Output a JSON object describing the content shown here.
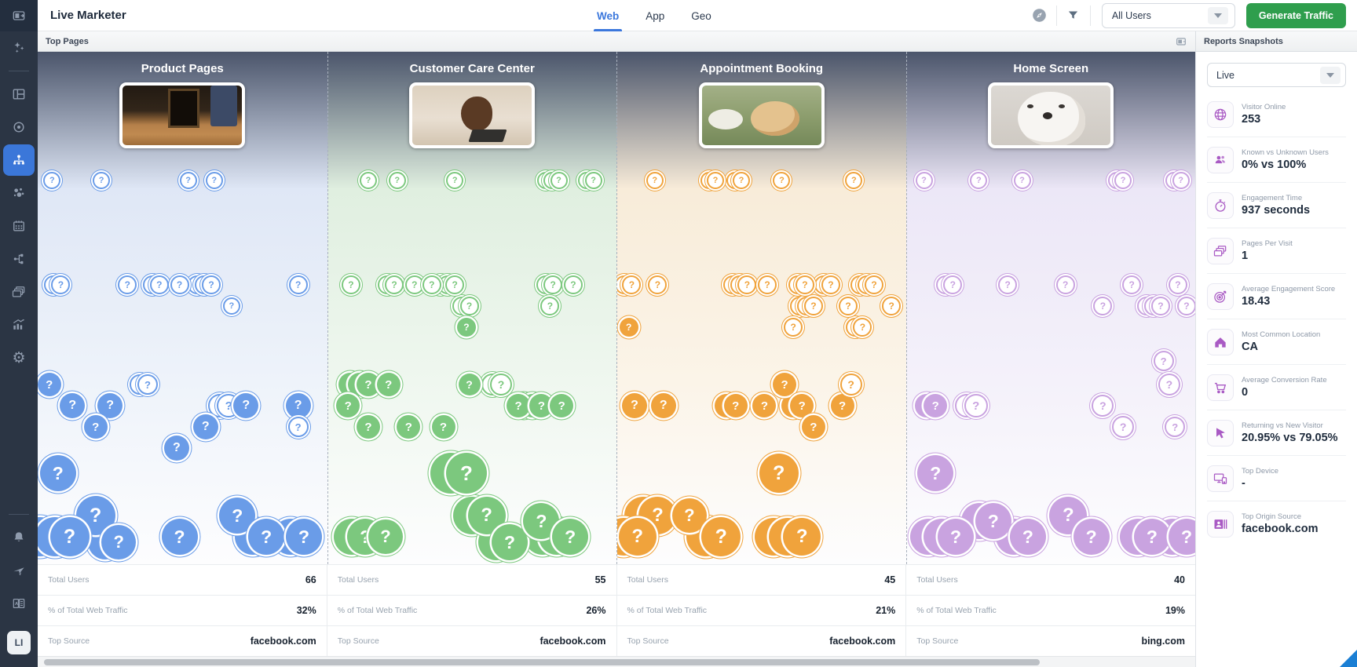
{
  "header": {
    "title": "Live Marketer",
    "tabs": [
      {
        "label": "Web",
        "active": true
      },
      {
        "label": "App",
        "active": false
      },
      {
        "label": "Geo",
        "active": false
      }
    ],
    "icons": [
      "compass-icon",
      "filter-icon"
    ],
    "filter_value": "All Users",
    "generate_label": "Generate Traffic"
  },
  "sidebar": {
    "icons": [
      "panel-toggle-icon",
      "sparkles-icon",
      "dashboard-icon",
      "target-icon",
      "sitemap-icon",
      "bubbles-icon",
      "calendar-icon",
      "flow-icon",
      "layers-icon",
      "chart-growth-icon",
      "gear-icon",
      "bell-icon",
      "send-icon",
      "book-icon"
    ],
    "active_item": "sitemap-icon",
    "avatar": "LI"
  },
  "toolbar": {
    "top_pages": "Top Pages",
    "reports": "Reports Snapshots"
  },
  "stats_labels": {
    "total_users": "Total Users",
    "traffic": "% of Total Web Traffic",
    "source": "Top Source"
  },
  "columns": [
    {
      "title": "Product Pages",
      "color": "#6a9ce8",
      "tint": "#dfe7f6",
      "tint_light": "#eef3fa",
      "total_users": "66",
      "traffic_pct": "32%",
      "top_source": "facebook.com",
      "bubbles": [
        [
          5,
          164,
          22,
          "o",
          1
        ],
        [
          22,
          164,
          22,
          "o",
          1
        ],
        [
          52,
          164,
          22,
          "o",
          1
        ],
        [
          61,
          164,
          22,
          "o",
          1
        ],
        [
          8,
          297,
          24,
          "o",
          2
        ],
        [
          31,
          297,
          24,
          "o",
          1
        ],
        [
          42,
          297,
          24,
          "o",
          2
        ],
        [
          49,
          297,
          24,
          "o",
          1
        ],
        [
          60,
          297,
          24,
          "o",
          3
        ],
        [
          67,
          324,
          22,
          "o",
          1
        ],
        [
          90,
          297,
          24,
          "o",
          1
        ],
        [
          4,
          424,
          30,
          "f",
          1
        ],
        [
          12,
          451,
          32,
          "f",
          1
        ],
        [
          25,
          451,
          32,
          "f",
          1
        ],
        [
          20,
          478,
          30,
          "f",
          1
        ],
        [
          38,
          424,
          26,
          "o",
          2
        ],
        [
          48,
          505,
          32,
          "f",
          1
        ],
        [
          58,
          478,
          32,
          "f",
          1
        ],
        [
          66,
          451,
          30,
          "o",
          2
        ],
        [
          72,
          451,
          32,
          "f",
          1
        ],
        [
          90,
          451,
          32,
          "f",
          1
        ],
        [
          90,
          478,
          26,
          "o",
          1
        ],
        [
          7,
          537,
          46,
          "f",
          1
        ],
        [
          20,
          591,
          50,
          "f",
          1
        ],
        [
          11,
          618,
          50,
          "f",
          3
        ],
        [
          28,
          625,
          44,
          "f",
          2
        ],
        [
          49,
          618,
          46,
          "f",
          1
        ],
        [
          69,
          591,
          46,
          "f",
          1
        ],
        [
          79,
          618,
          46,
          "f",
          2
        ],
        [
          92,
          618,
          46,
          "f",
          2
        ]
      ]
    },
    {
      "title": "Customer Care Center",
      "color": "#7cc87e",
      "tint": "#e0efe0",
      "tint_light": "#eff7ef",
      "total_users": "55",
      "traffic_pct": "26%",
      "top_source": "facebook.com",
      "bubbles": [
        [
          14,
          164,
          22,
          "o",
          1
        ],
        [
          24,
          164,
          22,
          "o",
          1
        ],
        [
          44,
          164,
          22,
          "o",
          1
        ],
        [
          80,
          164,
          22,
          "o",
          3
        ],
        [
          92,
          164,
          22,
          "o",
          2
        ],
        [
          8,
          297,
          24,
          "o",
          1
        ],
        [
          23,
          297,
          24,
          "o",
          2
        ],
        [
          30,
          297,
          24,
          "o",
          1
        ],
        [
          36,
          297,
          24,
          "o",
          1
        ],
        [
          44,
          297,
          24,
          "o",
          3
        ],
        [
          49,
          324,
          24,
          "o",
          2
        ],
        [
          48,
          351,
          24,
          "f",
          1
        ],
        [
          78,
          297,
          24,
          "o",
          2
        ],
        [
          85,
          297,
          24,
          "o",
          1
        ],
        [
          77,
          324,
          24,
          "o",
          1
        ],
        [
          7,
          451,
          30,
          "f",
          1
        ],
        [
          14,
          424,
          30,
          "f",
          3
        ],
        [
          21,
          424,
          30,
          "f",
          1
        ],
        [
          14,
          478,
          30,
          "f",
          1
        ],
        [
          28,
          478,
          30,
          "f",
          1
        ],
        [
          40,
          478,
          30,
          "f",
          1
        ],
        [
          49,
          424,
          28,
          "f",
          1
        ],
        [
          60,
          424,
          28,
          "o",
          2
        ],
        [
          66,
          451,
          30,
          "f",
          1
        ],
        [
          74,
          451,
          30,
          "f",
          3
        ],
        [
          81,
          451,
          30,
          "f",
          1
        ],
        [
          48,
          537,
          52,
          "f",
          2
        ],
        [
          13,
          618,
          46,
          "f",
          2
        ],
        [
          20,
          618,
          44,
          "f",
          1
        ],
        [
          55,
          591,
          48,
          "f",
          2
        ],
        [
          63,
          625,
          46,
          "f",
          2
        ],
        [
          74,
          598,
          46,
          "f",
          1
        ],
        [
          84,
          618,
          46,
          "f",
          3
        ]
      ]
    },
    {
      "title": "Appointment Booking",
      "color": "#f0a33c",
      "tint": "#f8ecd9",
      "tint_light": "#fbf4e8",
      "total_users": "45",
      "traffic_pct": "21%",
      "top_source": "facebook.com",
      "bubbles": [
        [
          13,
          164,
          22,
          "o",
          1
        ],
        [
          34,
          164,
          22,
          "o",
          2
        ],
        [
          43,
          164,
          22,
          "o",
          2
        ],
        [
          57,
          164,
          22,
          "o",
          1
        ],
        [
          82,
          164,
          22,
          "o",
          1
        ],
        [
          5,
          297,
          24,
          "o",
          2
        ],
        [
          14,
          297,
          24,
          "o",
          1
        ],
        [
          4,
          351,
          24,
          "f",
          1
        ],
        [
          45,
          297,
          24,
          "o",
          3
        ],
        [
          52,
          297,
          24,
          "o",
          1
        ],
        [
          61,
          351,
          24,
          "o",
          1
        ],
        [
          65,
          297,
          24,
          "o",
          2
        ],
        [
          68,
          324,
          24,
          "o",
          3
        ],
        [
          74,
          297,
          24,
          "o",
          2
        ],
        [
          80,
          324,
          24,
          "o",
          1
        ],
        [
          85,
          351,
          24,
          "o",
          2
        ],
        [
          89,
          297,
          24,
          "o",
          3
        ],
        [
          95,
          324,
          24,
          "o",
          1
        ],
        [
          6,
          451,
          32,
          "f",
          1
        ],
        [
          16,
          451,
          32,
          "f",
          1
        ],
        [
          41,
          451,
          30,
          "f",
          2
        ],
        [
          51,
          451,
          30,
          "f",
          1
        ],
        [
          58,
          424,
          30,
          "f",
          1
        ],
        [
          64,
          451,
          30,
          "f",
          2
        ],
        [
          68,
          478,
          30,
          "f",
          1
        ],
        [
          78,
          451,
          30,
          "f",
          1
        ],
        [
          81,
          424,
          28,
          "o",
          1
        ],
        [
          56,
          537,
          50,
          "f",
          1
        ],
        [
          14,
          591,
          48,
          "f",
          2
        ],
        [
          7,
          618,
          48,
          "f",
          2
        ],
        [
          25,
          591,
          44,
          "f",
          1
        ],
        [
          36,
          618,
          50,
          "f",
          2
        ],
        [
          64,
          618,
          48,
          "f",
          3
        ]
      ]
    },
    {
      "title": "Home Screen",
      "color": "#c9a3e0",
      "tint": "#ece7f7",
      "tint_light": "#f4f1fa",
      "total_users": "40",
      "traffic_pct": "19%",
      "top_source": "bing.com",
      "bubbles": [
        [
          6,
          164,
          22,
          "o",
          1
        ],
        [
          25,
          164,
          22,
          "o",
          1
        ],
        [
          40,
          164,
          22,
          "o",
          1
        ],
        [
          75,
          164,
          22,
          "o",
          2
        ],
        [
          95,
          164,
          22,
          "o",
          2
        ],
        [
          16,
          297,
          24,
          "o",
          2
        ],
        [
          35,
          297,
          24,
          "o",
          1
        ],
        [
          55,
          297,
          24,
          "o",
          1
        ],
        [
          68,
          324,
          24,
          "o",
          1
        ],
        [
          78,
          297,
          24,
          "o",
          1
        ],
        [
          88,
          324,
          24,
          "o",
          3
        ],
        [
          94,
          297,
          24,
          "o",
          1
        ],
        [
          97,
          324,
          24,
          "o",
          1
        ],
        [
          10,
          451,
          30,
          "f",
          2
        ],
        [
          24,
          451,
          30,
          "o",
          2
        ],
        [
          68,
          451,
          28,
          "o",
          1
        ],
        [
          75,
          478,
          28,
          "o",
          1
        ],
        [
          89,
          394,
          26,
          "o",
          1
        ],
        [
          91,
          424,
          28,
          "o",
          1
        ],
        [
          93,
          478,
          26,
          "o",
          1
        ],
        [
          10,
          537,
          46,
          "f",
          1
        ],
        [
          17,
          618,
          46,
          "f",
          3
        ],
        [
          30,
          598,
          46,
          "f",
          2
        ],
        [
          42,
          618,
          46,
          "f",
          2
        ],
        [
          56,
          591,
          48,
          "f",
          1
        ],
        [
          64,
          618,
          46,
          "f",
          1
        ],
        [
          85,
          618,
          46,
          "f",
          2
        ],
        [
          97,
          618,
          46,
          "f",
          2
        ]
      ]
    }
  ],
  "reports": {
    "dropdown_value": "Live",
    "accent": "#a95ac4",
    "metrics": [
      {
        "icon": "globe-icon",
        "label": "Visitor Online",
        "value": "253"
      },
      {
        "icon": "users-icon",
        "label": "Known vs Unknown Users",
        "value": "0% vs 100%"
      },
      {
        "icon": "stopwatch-icon",
        "label": "Engagement Time",
        "value": "937 seconds"
      },
      {
        "icon": "pages-icon",
        "label": "Pages Per Visit",
        "value": "1"
      },
      {
        "icon": "target-arrow-icon",
        "label": "Average Engagement Score",
        "value": "18.43"
      },
      {
        "icon": "home-icon",
        "label": "Most Common Location",
        "value": "CA"
      },
      {
        "icon": "cart-icon",
        "label": "Average Conversion Rate",
        "value": "0"
      },
      {
        "icon": "cursor-icon",
        "label": "Returning vs New Visitor",
        "value": "20.95% vs 79.05%"
      },
      {
        "icon": "devices-icon",
        "label": "Top Device",
        "value": "-"
      },
      {
        "icon": "contact-card-icon",
        "label": "Top Origin Source",
        "value": "facebook.com"
      }
    ]
  },
  "colors": {
    "dark_band": "#4b556b",
    "active_nav": "#3b77d9",
    "tab_active": "#3b77dc",
    "generate_green": "#2f9e4d"
  }
}
